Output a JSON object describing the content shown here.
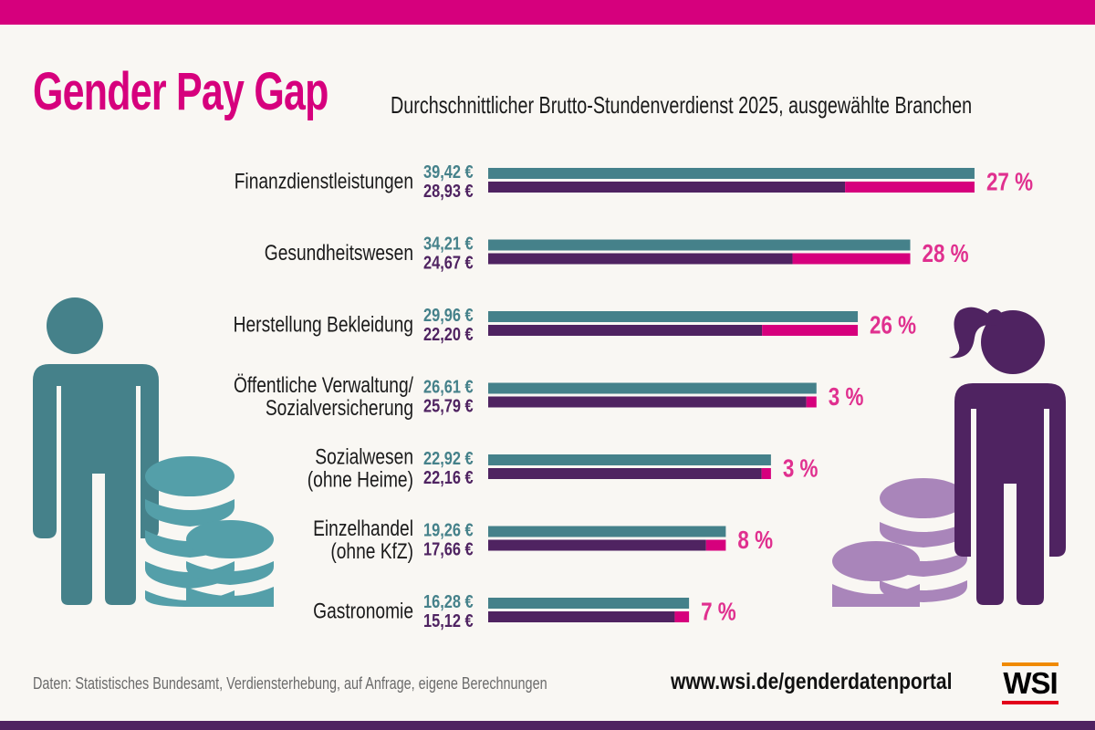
{
  "header": {
    "title": "Gender Pay Gap",
    "subtitle": "Durchschnittlicher Brutto-Stundenverdienst 2025, ausgewählte Branchen"
  },
  "colors": {
    "men": "#45818a",
    "women": "#4f2361",
    "gap": "#d6007d",
    "gap_text": "#e0308f",
    "men_coins": "#549fa9",
    "women_coins": "#a985ba",
    "brand_top_bar": "#d6007d",
    "brand_bottom_bar": "#4f2361"
  },
  "chart_data": {
    "type": "bar",
    "orientation": "horizontal",
    "title": "Gender Pay Gap",
    "subtitle": "Durchschnittlicher Brutto-Stundenverdienst 2025, ausgewählte Branchen",
    "unit": "€ pro Stunde",
    "xlim": [
      0,
      40
    ],
    "grid": false,
    "categories": [
      [
        "Finanzdienstleistungen"
      ],
      [
        "Gesundheitswesen"
      ],
      [
        "Herstellung Bekleidung"
      ],
      [
        "Öffentliche Verwaltung/",
        "Sozialversicherung"
      ],
      [
        "Sozialwesen",
        "(ohne Heime)"
      ],
      [
        "Einzelhandel",
        "(ohne KfZ)"
      ],
      [
        "Gastronomie"
      ]
    ],
    "series": [
      {
        "name": "Männer",
        "values": [
          39.42,
          34.21,
          29.96,
          26.61,
          22.92,
          19.26,
          16.28
        ],
        "labels": [
          "39,42 €",
          "34,21 €",
          "29,96 €",
          "26,61 €",
          "22,92 €",
          "19,26 €",
          "16,28 €"
        ]
      },
      {
        "name": "Frauen",
        "values": [
          28.93,
          24.67,
          22.2,
          25.79,
          22.16,
          17.66,
          15.12
        ],
        "labels": [
          "28,93 €",
          "24,67 €",
          "22,20 €",
          "25,79 €",
          "22,16 €",
          "17,66 €",
          "15,12 €"
        ]
      }
    ],
    "gap_percent": [
      27,
      28,
      26,
      3,
      3,
      8,
      7
    ],
    "gap_labels": [
      "27 %",
      "28 %",
      "26 %",
      "3 %",
      "3 %",
      "8 %",
      "7 %"
    ]
  },
  "illustrations": {
    "left": "man-with-coins-icon",
    "right": "woman-with-coins-icon"
  },
  "footer": {
    "source": "Daten: Statistisches Bundesamt, Verdiensterhebung, auf Anfrage, eigene Berechnungen",
    "url": "www.wsi.de/genderdatenportal",
    "logo": "WSI"
  }
}
